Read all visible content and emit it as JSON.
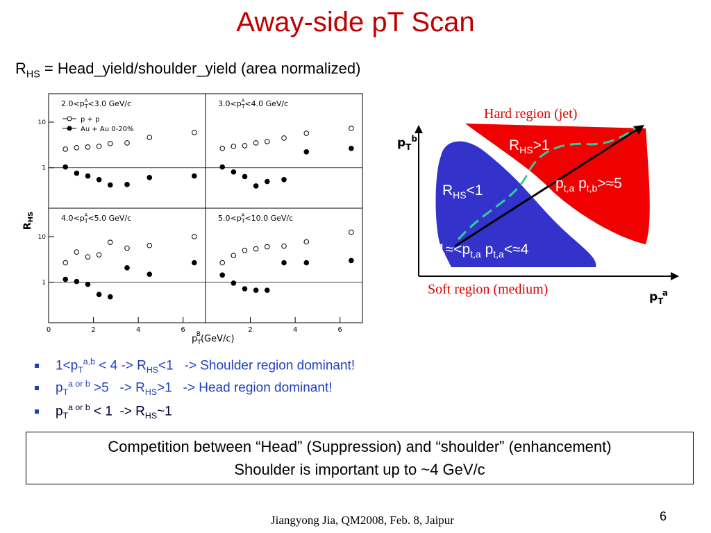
{
  "title": "Away-side pT Scan",
  "subtitle": [
    "R",
    "HS",
    " = Head_yield/shoulder_yield (area normalized)"
  ],
  "plot": {
    "ylabel": [
      "R",
      "HS"
    ],
    "xlabel": [
      "p",
      "T",
      "B",
      "(GeV/c)"
    ],
    "chart_data": [
      {
        "type": "scatter",
        "label": [
          "2.0<p",
          "T",
          "A",
          "<3.0 GeV/c"
        ],
        "log_y": true,
        "ylim": [
          0.13,
          42
        ],
        "xlim": [
          0,
          7
        ],
        "yticks": [
          1,
          10
        ],
        "x": [
          0.75,
          1.25,
          1.75,
          2.25,
          2.75,
          3.5,
          4.5,
          6.5
        ],
        "series": [
          {
            "name": "p + p",
            "color": "#000000",
            "marker": "open",
            "values": [
              2.56,
              2.75,
              2.85,
              2.95,
              3.39,
              3.51,
              4.64,
              5.93
            ]
          },
          {
            "name": "Au + Au 0-20%",
            "color": "#000000",
            "marker": "filled",
            "values": [
              1.04,
              0.76,
              0.66,
              0.55,
              0.42,
              0.43,
              0.61,
              0.66
            ]
          }
        ]
      },
      {
        "type": "scatter",
        "label": [
          "3.0<p",
          "T",
          "A",
          "<4.0 GeV/c"
        ],
        "log_y": true,
        "ylim": [
          0.13,
          42
        ],
        "xlim": [
          0,
          7
        ],
        "x": [
          0.75,
          1.25,
          1.75,
          2.25,
          2.75,
          3.5,
          4.5,
          6.5
        ],
        "series": [
          {
            "color": "#000000",
            "marker": "open",
            "values": [
              2.66,
              2.95,
              3.05,
              3.51,
              3.76,
              4.48,
              5.7,
              7.3
            ]
          },
          {
            "color": "#000000",
            "marker": "filled",
            "values": [
              1.04,
              0.81,
              0.64,
              0.4,
              0.5,
              0.55,
              2.23,
              2.66
            ]
          }
        ]
      },
      {
        "type": "scatter",
        "label": [
          "4.0<p",
          "T",
          "A",
          "<5.0 GeV/c"
        ],
        "log_y": true,
        "ylim": [
          0.13,
          42
        ],
        "xlim": [
          0,
          7
        ],
        "yticks": [
          1,
          10
        ],
        "xticks": [
          0,
          2,
          4,
          6
        ],
        "x": [
          0.75,
          1.25,
          1.75,
          2.25,
          2.75,
          3.5,
          4.5,
          6.5
        ],
        "series": [
          {
            "color": "#000000",
            "marker": "open",
            "values": [
              2.68,
              4.6,
              3.6,
              4.0,
              7.5,
              5.6,
              6.4,
              10
            ]
          },
          {
            "color": "#000000",
            "marker": "filled",
            "values": [
              1.16,
              1.04,
              0.9,
              0.54,
              0.48,
              2.08,
              1.5,
              2.68
            ]
          }
        ]
      },
      {
        "type": "scatter",
        "label": [
          "5.0<p",
          "T",
          "A",
          "<10.0 GeV/c"
        ],
        "log_y": true,
        "ylim": [
          0.13,
          42
        ],
        "xlim": [
          0,
          7
        ],
        "xticks": [
          2,
          4,
          6
        ],
        "x": [
          0.75,
          1.25,
          1.75,
          2.25,
          2.75,
          3.5,
          4.5,
          6.5
        ],
        "series": [
          {
            "color": "#000000",
            "marker": "open",
            "values": [
              2.68,
              3.86,
              5.0,
              5.4,
              6.0,
              6.2,
              7.7,
              12.5
            ]
          },
          {
            "color": "#000000",
            "marker": "filled",
            "values": [
              1.44,
              0.96,
              0.72,
              0.67,
              0.67,
              2.68,
              2.68,
              2.99
            ]
          }
        ]
      }
    ]
  },
  "diagram": {
    "hard": "Hard region (jet)",
    "soft": "Soft region (medium)",
    "yaxis": [
      "p",
      "T",
      "b"
    ],
    "xaxis": [
      "p",
      "T",
      "a"
    ],
    "head": [
      "R",
      "HS",
      ">1"
    ],
    "head_cond": [
      "p",
      "t,a",
      " p",
      "t,b",
      ">≈5"
    ],
    "shoulder": [
      "R",
      "HS",
      "<1"
    ],
    "shoulder_cond": [
      "1≈<p",
      "t,a",
      " p",
      "t,a",
      "<≈4"
    ]
  },
  "bullets": [
    [
      "1<p",
      "T",
      "a,b",
      " < 4 -> R",
      "HS",
      "<1   -> Shoulder region dominant!"
    ],
    [
      "p",
      "T",
      "a or b",
      " >5   -> R",
      "HS",
      ">1   -> Head region dominant!"
    ],
    [
      "p",
      "T",
      "a or b",
      " < 1  -> R",
      "HS",
      "~1"
    ]
  ],
  "box": [
    "Competition between “Head” (Suppression) and “shoulder” (enhancement)",
    "Shoulder is important up to ~4 GeV/c"
  ],
  "footer": "Jiangyong Jia, QM2008, Feb. 8, Jaipur",
  "page": "6"
}
